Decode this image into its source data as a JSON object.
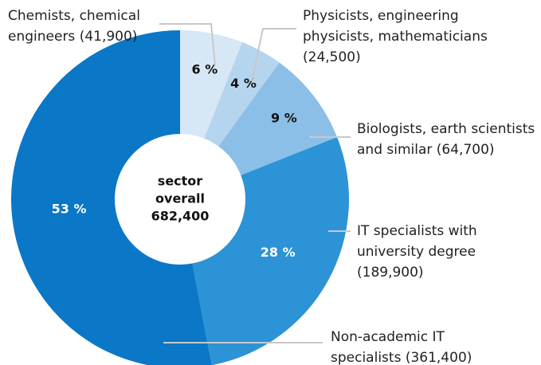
{
  "chart_data": {
    "type": "donut",
    "categories": [
      [
        "Chemists, chemical",
        "engineers (41,900)"
      ],
      [
        "Physicists, engineering",
        "physicists, mathematicians",
        "(24,500)"
      ],
      [
        "Biologists, earth scientists",
        "and similar (64,700)"
      ],
      [
        "IT specialists with",
        "university degree",
        "(189,900)"
      ],
      [
        "Non-academic IT",
        "specialists (361,400)"
      ]
    ],
    "values": [
      6,
      4,
      9,
      28,
      53
    ],
    "value_labels": [
      "6 %",
      "4 %",
      "9 %",
      "28 %",
      "53 %"
    ],
    "colors": [
      "#d7e7f5",
      "#b5d5ef",
      "#8cbfe7",
      "#2c93d6",
      "#0b77c7"
    ],
    "center_label": [
      "sector",
      "overall",
      "682,400"
    ]
  }
}
